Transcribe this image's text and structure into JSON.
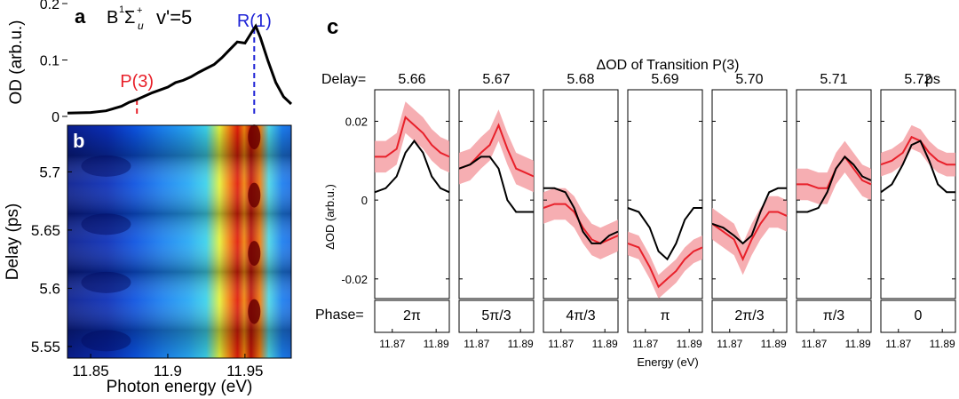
{
  "colors": {
    "line": "#000000",
    "measured": "#e8202a",
    "band": "#f4a0a4",
    "marker_p3": "#e8202a",
    "marker_r1": "#1f24d6"
  },
  "panel_a": {
    "letter": "a",
    "state_main": "B",
    "state_sup1": "1",
    "state_sigma": "Σ",
    "state_sup2": "+",
    "state_sub": "u",
    "vib_label": "v'=5",
    "ylabel": "OD (arb.u.)",
    "yticks": [
      "0",
      "0.1",
      "0.2"
    ],
    "ylim": [
      0,
      0.2
    ],
    "xlim": [
      11.835,
      11.98
    ],
    "markers": [
      {
        "label": "P(3)",
        "energy": 11.88
      },
      {
        "label": "R(1)",
        "energy": 11.956
      }
    ]
  },
  "panel_b": {
    "letter": "b",
    "ylabel": "Delay (ps)",
    "xlabel": "Photon energy (eV)",
    "xticks": [
      "11.85",
      "11.9",
      "11.95"
    ],
    "xtick_values": [
      11.85,
      11.9,
      11.95
    ],
    "yticks": [
      "5.55",
      "5.6",
      "5.65",
      "5.7"
    ],
    "ytick_values": [
      5.55,
      5.6,
      5.65,
      5.7
    ],
    "xlim": [
      11.835,
      11.98
    ],
    "ylim": [
      5.54,
      5.74
    ]
  },
  "panel_c": {
    "letter": "c",
    "title": "ΔOD of Transition P(3)",
    "delay_label": "Delay=",
    "delay_unit": "ps",
    "phase_label": "Phase=",
    "ylabel": "ΔOD (arb.u.)",
    "xlabel": "Energy (eV)",
    "yticks": [
      "0.02",
      "0",
      "-0.02"
    ],
    "ytick_values": [
      0.02,
      0,
      -0.02
    ],
    "ylim": [
      -0.025,
      0.028
    ],
    "xlim": [
      11.862,
      11.896
    ],
    "xticks": [
      "11.87",
      "11.89"
    ],
    "xtick_values": [
      11.87,
      11.89
    ]
  },
  "chart_data": [
    {
      "type": "line",
      "panel": "a",
      "ylabel": "OD (arb.u.)",
      "x": [
        11.835,
        11.85,
        11.86,
        11.87,
        11.875,
        11.88,
        11.885,
        11.89,
        11.895,
        11.9,
        11.905,
        11.91,
        11.915,
        11.92,
        11.925,
        11.93,
        11.935,
        11.94,
        11.945,
        11.95,
        11.955,
        11.957,
        11.96,
        11.965,
        11.97,
        11.975,
        11.98
      ],
      "y": [
        0.006,
        0.007,
        0.01,
        0.018,
        0.025,
        0.03,
        0.036,
        0.042,
        0.047,
        0.052,
        0.06,
        0.064,
        0.07,
        0.078,
        0.085,
        0.092,
        0.104,
        0.118,
        0.132,
        0.13,
        0.152,
        0.16,
        0.14,
        0.098,
        0.06,
        0.035,
        0.022
      ]
    },
    {
      "type": "heatmap",
      "panel": "b",
      "xlabel": "Photon energy (eV)",
      "ylabel": "Delay (ps)",
      "bright_bands_eV": [
        11.939,
        11.944,
        11.956
      ],
      "modulation_period_ps": 0.05
    },
    {
      "type": "line",
      "panel": "c",
      "title": "ΔOD of Transition P(3)",
      "x": [
        11.862,
        11.867,
        11.872,
        11.876,
        11.88,
        11.884,
        11.888,
        11.892,
        11.896
      ],
      "series": [
        {
          "delay": "5.66",
          "phase": "2π",
          "measured": [
            0.011,
            0.011,
            0.013,
            0.021,
            0.019,
            0.017,
            0.014,
            0.012,
            0.011
          ],
          "band_halfwidth": 0.004,
          "model": [
            0.002,
            0.003,
            0.006,
            0.012,
            0.015,
            0.012,
            0.006,
            0.003,
            0.002
          ]
        },
        {
          "delay": "5.67",
          "phase": "5π/3",
          "measured": [
            0.008,
            0.009,
            0.012,
            0.014,
            0.019,
            0.013,
            0.008,
            0.007,
            0.006
          ],
          "band_halfwidth": 0.004,
          "model": [
            0.008,
            0.009,
            0.011,
            0.011,
            0.008,
            0.0,
            -0.003,
            -0.003,
            -0.003
          ]
        },
        {
          "delay": "5.68",
          "phase": "4π/3",
          "measured": [
            -0.002,
            -0.001,
            -0.001,
            -0.003,
            -0.007,
            -0.01,
            -0.011,
            -0.01,
            -0.009
          ],
          "band_halfwidth": 0.004,
          "model": [
            0.003,
            0.003,
            0.002,
            -0.002,
            -0.008,
            -0.011,
            -0.011,
            -0.009,
            -0.008
          ]
        },
        {
          "delay": "5.69",
          "phase": "π",
          "measured": [
            -0.011,
            -0.012,
            -0.017,
            -0.022,
            -0.02,
            -0.018,
            -0.015,
            -0.013,
            -0.012
          ],
          "band_halfwidth": 0.003,
          "model": [
            -0.002,
            -0.003,
            -0.007,
            -0.013,
            -0.015,
            -0.011,
            -0.005,
            -0.002,
            -0.002
          ]
        },
        {
          "delay": "5.70",
          "phase": "2π/3",
          "measured": [
            -0.006,
            -0.008,
            -0.01,
            -0.015,
            -0.01,
            -0.006,
            -0.003,
            -0.003,
            -0.004
          ],
          "band_halfwidth": 0.004,
          "model": [
            -0.006,
            -0.007,
            -0.009,
            -0.011,
            -0.009,
            -0.003,
            0.002,
            0.003,
            0.003
          ]
        },
        {
          "delay": "5.71",
          "phase": "π/3",
          "measured": [
            0.004,
            0.004,
            0.003,
            0.003,
            0.008,
            0.011,
            0.008,
            0.005,
            0.004
          ],
          "band_halfwidth": 0.004,
          "model": [
            -0.003,
            -0.003,
            -0.002,
            0.002,
            0.008,
            0.011,
            0.009,
            0.006,
            0.005
          ]
        },
        {
          "delay": "5.72",
          "phase": "0",
          "measured": [
            0.009,
            0.01,
            0.012,
            0.016,
            0.015,
            0.012,
            0.01,
            0.009,
            0.009
          ],
          "band_halfwidth": 0.003,
          "model": [
            0.002,
            0.004,
            0.009,
            0.014,
            0.015,
            0.01,
            0.004,
            0.002,
            0.002
          ]
        }
      ]
    }
  ]
}
